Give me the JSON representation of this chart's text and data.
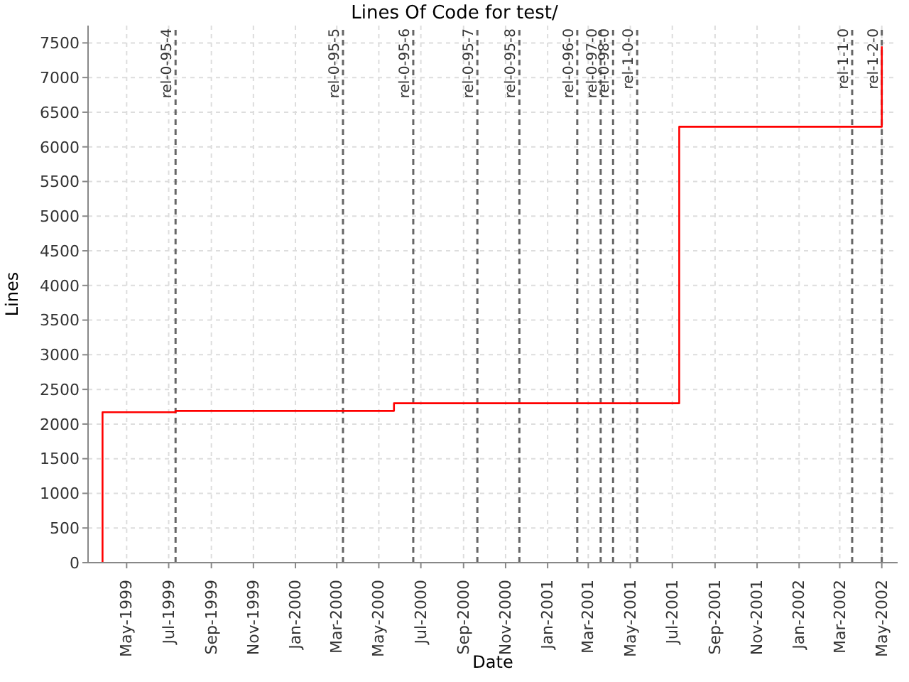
{
  "chart_data": {
    "type": "step",
    "title": "Lines Of Code for test/",
    "xlabel": "Date",
    "ylabel": "Lines",
    "x": [
      "1999-03-27",
      "1999-03-27",
      "1999-07-11",
      "2000-05-23",
      "2001-07-11",
      "2002-05-01"
    ],
    "series": [
      {
        "color": "#ff0000",
        "values": [
          0,
          2170,
          2190,
          2300,
          6290,
          7450
        ]
      }
    ],
    "xlim": [
      "1999-03-06",
      "2002-05-24"
    ],
    "xticks": [
      {
        "value": "1999-05",
        "label": "May-1999"
      },
      {
        "value": "1999-07",
        "label": "Jul-1999"
      },
      {
        "value": "1999-09",
        "label": "Sep-1999"
      },
      {
        "value": "1999-11",
        "label": "Nov-1999"
      },
      {
        "value": "2000-01",
        "label": "Jan-2000"
      },
      {
        "value": "2000-03",
        "label": "Mar-2000"
      },
      {
        "value": "2000-05",
        "label": "May-2000"
      },
      {
        "value": "2000-07",
        "label": "Jul-2000"
      },
      {
        "value": "2000-09",
        "label": "Sep-2000"
      },
      {
        "value": "2000-11",
        "label": "Nov-2000"
      },
      {
        "value": "2001-01",
        "label": "Jan-2001"
      },
      {
        "value": "2001-03",
        "label": "Mar-2001"
      },
      {
        "value": "2001-05",
        "label": "May-2001"
      },
      {
        "value": "2001-07",
        "label": "Jul-2001"
      },
      {
        "value": "2001-09",
        "label": "Sep-2001"
      },
      {
        "value": "2001-11",
        "label": "Nov-2001"
      },
      {
        "value": "2002-01",
        "label": "Jan-2002"
      },
      {
        "value": "2002-03",
        "label": "Mar-2002"
      },
      {
        "value": "2002-05",
        "label": "May-2002"
      }
    ],
    "ylim": [
      0,
      7750
    ],
    "yticks": [
      0,
      500,
      1000,
      1500,
      2000,
      2500,
      3000,
      3500,
      4000,
      4500,
      5000,
      5500,
      6000,
      6500,
      7000,
      7500
    ],
    "grid": true,
    "line_style": "solid",
    "marker": "none",
    "ref_lines": [
      {
        "axis": "x",
        "value": "1999-07-11",
        "label": "rel-0-95-4",
        "color": "#666666",
        "line_style": "dashed"
      },
      {
        "axis": "x",
        "value": "2000-03-10",
        "label": "rel-0-95-5",
        "color": "#666666",
        "line_style": "dashed"
      },
      {
        "axis": "x",
        "value": "2000-06-20",
        "label": "rel-0-95-6",
        "color": "#666666",
        "line_style": "dashed"
      },
      {
        "axis": "x",
        "value": "2000-09-21",
        "label": "rel-0-95-7",
        "color": "#666666",
        "line_style": "dashed"
      },
      {
        "axis": "x",
        "value": "2000-11-21",
        "label": "rel-0-95-8",
        "color": "#666666",
        "line_style": "dashed"
      },
      {
        "axis": "x",
        "value": "2001-02-13",
        "label": "rel-0-96-0",
        "color": "#666666",
        "line_style": "dashed"
      },
      {
        "axis": "x",
        "value": "2001-03-19",
        "label": "rel-0-97-0",
        "color": "#666666",
        "line_style": "dashed"
      },
      {
        "axis": "x",
        "value": "2001-04-06",
        "label": "rel-0-98-0",
        "color": "#666666",
        "line_style": "dashed"
      },
      {
        "axis": "x",
        "value": "2001-05-11",
        "label": "rel-1-0-0",
        "color": "#666666",
        "line_style": "dashed"
      },
      {
        "axis": "x",
        "value": "2002-03-19",
        "label": "rel-1-1-0",
        "color": "#666666",
        "line_style": "dashed"
      },
      {
        "axis": "x",
        "value": "2002-05-01",
        "label": "rel-1-2-0",
        "color": "#666666",
        "line_style": "dashed"
      }
    ]
  }
}
